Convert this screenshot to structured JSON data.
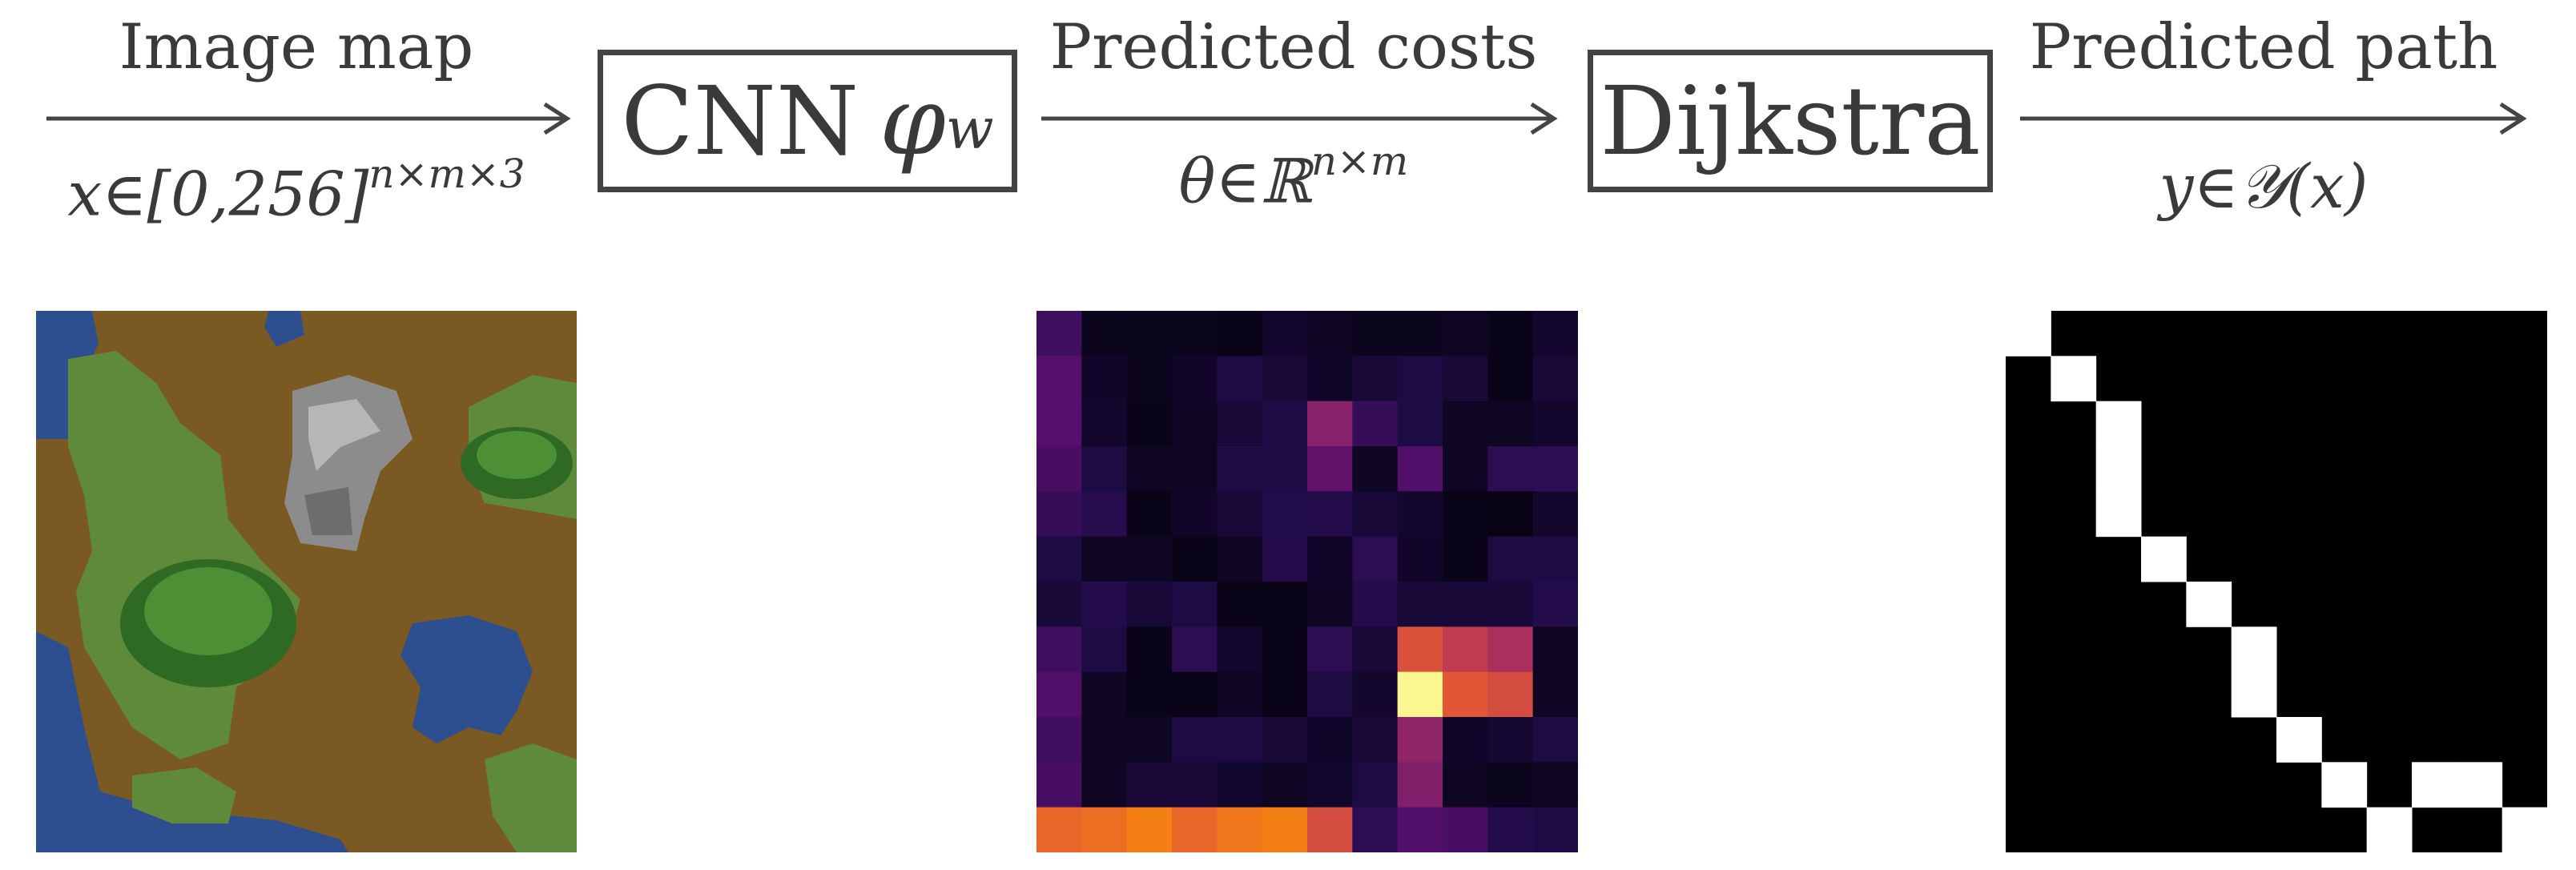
{
  "pipeline": {
    "input_label": "Image map",
    "input_math": {
      "prefix": "x∈[0,256]",
      "sup": "n×m×3"
    },
    "model": {
      "name": "CNN",
      "symbol": "φ",
      "sub": "w"
    },
    "costs_label": "Predicted costs",
    "costs_math": {
      "prefix": "θ∈ℝ",
      "sup": "n×m"
    },
    "solver": "Dijkstra",
    "output_label": "Predicted path",
    "output_math": "y∈𝒴(x)"
  },
  "colors": {
    "arrow": "#444444",
    "water": "#2d4f8f",
    "dirt": "#7a5a22",
    "grass": "#5e8a3a",
    "path": "#ffffff",
    "path_bg": "#000000"
  },
  "cost_grid": [
    [
      0.2,
      0.05,
      0.05,
      0.05,
      0.04,
      0.08,
      0.06,
      0.05,
      0.05,
      0.06,
      0.04,
      0.08
    ],
    [
      0.25,
      0.07,
      0.05,
      0.07,
      0.12,
      0.1,
      0.07,
      0.1,
      0.12,
      0.1,
      0.04,
      0.1
    ],
    [
      0.25,
      0.08,
      0.04,
      0.06,
      0.1,
      0.12,
      0.38,
      0.18,
      0.12,
      0.06,
      0.06,
      0.08
    ],
    [
      0.22,
      0.12,
      0.06,
      0.06,
      0.12,
      0.12,
      0.28,
      0.06,
      0.24,
      0.06,
      0.16,
      0.16
    ],
    [
      0.18,
      0.15,
      0.04,
      0.07,
      0.1,
      0.13,
      0.14,
      0.1,
      0.08,
      0.04,
      0.03,
      0.08
    ],
    [
      0.12,
      0.06,
      0.06,
      0.04,
      0.06,
      0.14,
      0.07,
      0.16,
      0.07,
      0.04,
      0.12,
      0.12
    ],
    [
      0.1,
      0.14,
      0.1,
      0.12,
      0.04,
      0.04,
      0.06,
      0.14,
      0.1,
      0.1,
      0.1,
      0.14
    ],
    [
      0.2,
      0.12,
      0.04,
      0.16,
      0.08,
      0.04,
      0.16,
      0.1,
      0.6,
      0.52,
      0.46,
      0.06
    ],
    [
      0.24,
      0.06,
      0.04,
      0.04,
      0.06,
      0.04,
      0.12,
      0.08,
      0.98,
      0.62,
      0.58,
      0.06
    ],
    [
      0.2,
      0.06,
      0.06,
      0.12,
      0.12,
      0.1,
      0.07,
      0.1,
      0.4,
      0.07,
      0.09,
      0.12
    ],
    [
      0.22,
      0.06,
      0.1,
      0.1,
      0.08,
      0.06,
      0.08,
      0.12,
      0.36,
      0.06,
      0.05,
      0.06
    ],
    [
      0.66,
      0.68,
      0.72,
      0.66,
      0.7,
      0.72,
      0.58,
      0.16,
      0.24,
      0.22,
      0.14,
      0.12
    ]
  ],
  "path_cells": [
    [
      0,
      0
    ],
    [
      1,
      1
    ],
    [
      2,
      2
    ],
    [
      3,
      2
    ],
    [
      4,
      2
    ],
    [
      5,
      3
    ],
    [
      6,
      4
    ],
    [
      7,
      5
    ],
    [
      8,
      5
    ],
    [
      9,
      6
    ],
    [
      10,
      7
    ],
    [
      11,
      8
    ],
    [
      10,
      9
    ],
    [
      10,
      10
    ],
    [
      11,
      11
    ]
  ]
}
